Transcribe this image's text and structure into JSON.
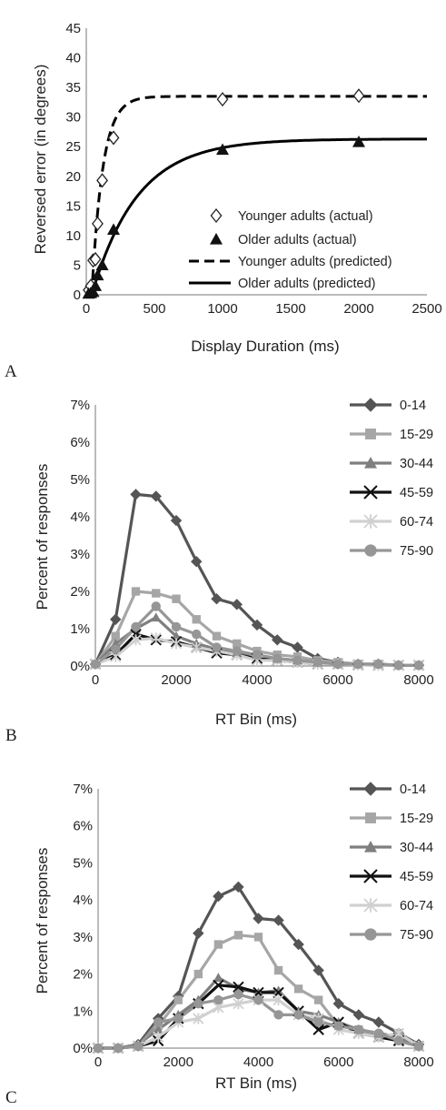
{
  "panels": [
    {
      "letter": "A",
      "chart_data": {
        "type": "scatter",
        "xlabel": "Display Duration (ms)",
        "ylabel": "Reversed error (in degrees)",
        "xlim": [
          0,
          2500
        ],
        "ylim": [
          0,
          45
        ],
        "xticks": [
          "0",
          "500",
          "1000",
          "1500",
          "2000",
          "2500"
        ],
        "yticks": [
          "0",
          "5",
          "10",
          "15",
          "20",
          "25",
          "30",
          "35",
          "40",
          "45"
        ],
        "grid": false,
        "legend": "right",
        "series": [
          {
            "name": "Younger adults (actual)",
            "marker": "open-diamond",
            "x": [
              17,
              33,
              50,
              67,
              83,
              117,
              200,
              1000,
              2000
            ],
            "y": [
              0.8,
              1.5,
              5.8,
              6.0,
              12.0,
              19.3,
              26.5,
              33.0,
              33.6
            ]
          },
          {
            "name": "Older adults (actual)",
            "marker": "filled-triangle",
            "x": [
              17,
              33,
              50,
              67,
              83,
              117,
              200,
              1000,
              2000
            ],
            "y": [
              0.2,
              0.3,
              0.5,
              1.5,
              3.3,
              5.0,
              11.0,
              24.5,
              25.8
            ]
          },
          {
            "name": "Younger adults (predicted)",
            "line": "dashed",
            "asymptote": 33.5,
            "rate": 0.0125,
            "onset": 40
          },
          {
            "name": "Older adults (predicted)",
            "line": "solid",
            "asymptote": 26.3,
            "rate": 0.003,
            "onset": 40
          }
        ]
      }
    },
    {
      "letter": "B",
      "chart_data": {
        "type": "line",
        "xlabel": "RT Bin (ms)",
        "ylabel": "Percent of responses",
        "xlim": [
          0,
          8000
        ],
        "ylim": [
          0,
          7
        ],
        "xticks": [
          "0",
          "2000",
          "4000",
          "6000",
          "8000"
        ],
        "yticks": [
          "0%",
          "1%",
          "2%",
          "3%",
          "4%",
          "5%",
          "6%",
          "7%"
        ],
        "grid": false,
        "legend": "right",
        "x": [
          0,
          500,
          1000,
          1500,
          2000,
          2500,
          3000,
          3500,
          4000,
          4500,
          5000,
          5500,
          6000,
          6500,
          7000,
          7500,
          8000
        ],
        "series": [
          {
            "name": "0-14",
            "color": "#555555",
            "marker": "diamond",
            "values": [
              0.05,
              1.25,
              4.6,
              4.55,
              3.9,
              2.8,
              1.8,
              1.65,
              1.1,
              0.7,
              0.5,
              0.2,
              0.1,
              0.05,
              0.05,
              0.02,
              0.02
            ]
          },
          {
            "name": "15-29",
            "color": "#a6a6a6",
            "marker": "square",
            "values": [
              0.05,
              0.8,
              2.0,
              1.95,
              1.8,
              1.25,
              0.8,
              0.6,
              0.4,
              0.3,
              0.25,
              0.15,
              0.1,
              0.05,
              0.05,
              0.02,
              0.02
            ]
          },
          {
            "name": "30-44",
            "color": "#7f7f7f",
            "marker": "triangle",
            "values": [
              0.05,
              0.6,
              1.0,
              1.3,
              0.8,
              0.6,
              0.45,
              0.35,
              0.3,
              0.2,
              0.15,
              0.1,
              0.05,
              0.05,
              0.05,
              0.02,
              0.02
            ]
          },
          {
            "name": "45-59",
            "color": "#111111",
            "marker": "x",
            "values": [
              0.05,
              0.3,
              0.85,
              0.7,
              0.65,
              0.5,
              0.35,
              0.3,
              0.2,
              0.15,
              0.1,
              0.05,
              0.05,
              0.03,
              0.02,
              0.02,
              0.02
            ]
          },
          {
            "name": "60-74",
            "color": "#d0d0d0",
            "marker": "star",
            "values": [
              0.05,
              0.25,
              0.7,
              0.75,
              0.6,
              0.5,
              0.4,
              0.3,
              0.15,
              0.15,
              0.1,
              0.05,
              0.05,
              0.03,
              0.02,
              0.02,
              0.02
            ]
          },
          {
            "name": "75-90",
            "color": "#969696",
            "marker": "circle",
            "values": [
              0.05,
              0.45,
              1.05,
              1.6,
              1.05,
              0.85,
              0.5,
              0.4,
              0.3,
              0.2,
              0.15,
              0.1,
              0.05,
              0.05,
              0.05,
              0.02,
              0.02
            ]
          }
        ]
      }
    },
    {
      "letter": "C",
      "chart_data": {
        "type": "line",
        "xlabel": "RT Bin (ms)",
        "ylabel": "Percent of responses",
        "xlim": [
          0,
          8000
        ],
        "ylim": [
          0,
          7
        ],
        "xticks": [
          "0",
          "2000",
          "4000",
          "6000",
          "8000"
        ],
        "yticks": [
          "0%",
          "1%",
          "2%",
          "3%",
          "4%",
          "5%",
          "6%",
          "7%"
        ],
        "grid": false,
        "legend": "right",
        "x": [
          0,
          500,
          1000,
          1500,
          2000,
          2500,
          3000,
          3500,
          4000,
          4500,
          5000,
          5500,
          6000,
          6500,
          7000,
          7500,
          8000
        ],
        "series": [
          {
            "name": "0-14",
            "color": "#555555",
            "marker": "diamond",
            "values": [
              0,
              0,
              0.1,
              0.8,
              1.4,
              3.1,
              4.1,
              4.35,
              3.5,
              3.45,
              2.8,
              2.1,
              1.2,
              0.9,
              0.7,
              0.4,
              0.1
            ]
          },
          {
            "name": "15-29",
            "color": "#a6a6a6",
            "marker": "square",
            "values": [
              0,
              0,
              0.05,
              0.6,
              1.3,
              2.0,
              2.8,
              3.05,
              3.0,
              2.1,
              1.6,
              1.3,
              0.6,
              0.5,
              0.3,
              0.4,
              0.05
            ]
          },
          {
            "name": "30-44",
            "color": "#7f7f7f",
            "marker": "triangle",
            "values": [
              0,
              0,
              0.1,
              0.5,
              0.9,
              1.3,
              1.9,
              1.6,
              1.5,
              1.55,
              1.0,
              0.9,
              0.7,
              0.5,
              0.4,
              0.3,
              0.05
            ]
          },
          {
            "name": "45-59",
            "color": "#111111",
            "marker": "x",
            "values": [
              0,
              0,
              0.05,
              0.2,
              0.8,
              1.2,
              1.7,
              1.65,
              1.5,
              1.5,
              1.0,
              0.5,
              0.7,
              0.4,
              0.3,
              0.2,
              0.05
            ]
          },
          {
            "name": "60-74",
            "color": "#d0d0d0",
            "marker": "star",
            "values": [
              0,
              0,
              0.05,
              0.3,
              0.7,
              0.8,
              1.1,
              1.2,
              1.3,
              1.3,
              0.9,
              0.8,
              0.5,
              0.4,
              0.3,
              0.4,
              0.05
            ]
          },
          {
            "name": "75-90",
            "color": "#969696",
            "marker": "circle",
            "values": [
              0,
              0,
              0.05,
              0.7,
              0.8,
              1.2,
              1.3,
              1.45,
              1.3,
              0.9,
              0.9,
              0.7,
              0.6,
              0.5,
              0.4,
              0.2,
              0.05
            ]
          }
        ]
      }
    }
  ]
}
